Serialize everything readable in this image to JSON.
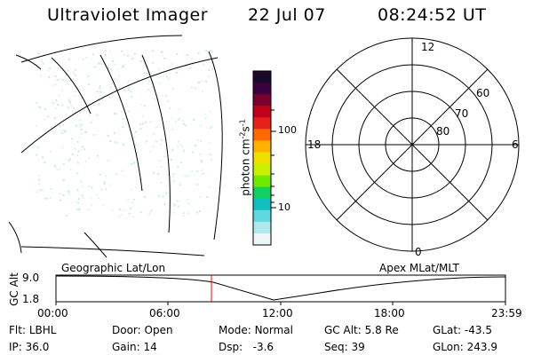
{
  "header": {
    "instrument": "Ultraviolet Imager",
    "date": "22 Jul 07",
    "time": "08:24:52 UT"
  },
  "colorbar": {
    "unit_label": "photon cm",
    "sup1": "-2",
    "mid": "s",
    "sup2": "-1",
    "tick_100": "100",
    "tick_10": "10",
    "colors": [
      "#1a0a2a",
      "#3a0040",
      "#7a0030",
      "#c0001a",
      "#e8201a",
      "#ff6a00",
      "#ffb000",
      "#f0e000",
      "#c8f000",
      "#70e800",
      "#10d060",
      "#10c0c0",
      "#60d8e0",
      "#b0e8f0",
      "#eef6f8"
    ]
  },
  "polar_plot": {
    "lat_labels": [
      "60",
      "70",
      "80"
    ],
    "mlt_labels": {
      "top": "12",
      "left": "18",
      "right": "6",
      "bottom": "0"
    }
  },
  "labels": {
    "geo": "Geographic Lat/Lon",
    "apex": "Apex MLat/MLT"
  },
  "orbit_plot": {
    "ylabel": "GC Alt",
    "ytick_top": "9.0",
    "ytick_bottom": "1.8",
    "xticks": [
      "00:00",
      "06:00",
      "12:00",
      "18:00",
      "23:59"
    ],
    "marker_color": "#ff0000"
  },
  "status": {
    "flt_label": "Flt:",
    "flt_value": "LBHL",
    "ip_label": "IP:",
    "ip_value": "36.0",
    "door_label": "Door:",
    "door_value": "Open",
    "gain_label": "Gain:",
    "gain_value": "14",
    "mode_label": "Mode:",
    "mode_value": "Normal",
    "dsp_label": "Dsp:",
    "dsp_value": "-3.6",
    "gcalt_label": "GC Alt:",
    "gcalt_value": "5.8 Re",
    "seq_label": "Seq:",
    "seq_value": "39",
    "glat_label": "GLat:",
    "glat_value": "-43.5",
    "glon_label": "GLon:",
    "glon_value": "243.9"
  }
}
